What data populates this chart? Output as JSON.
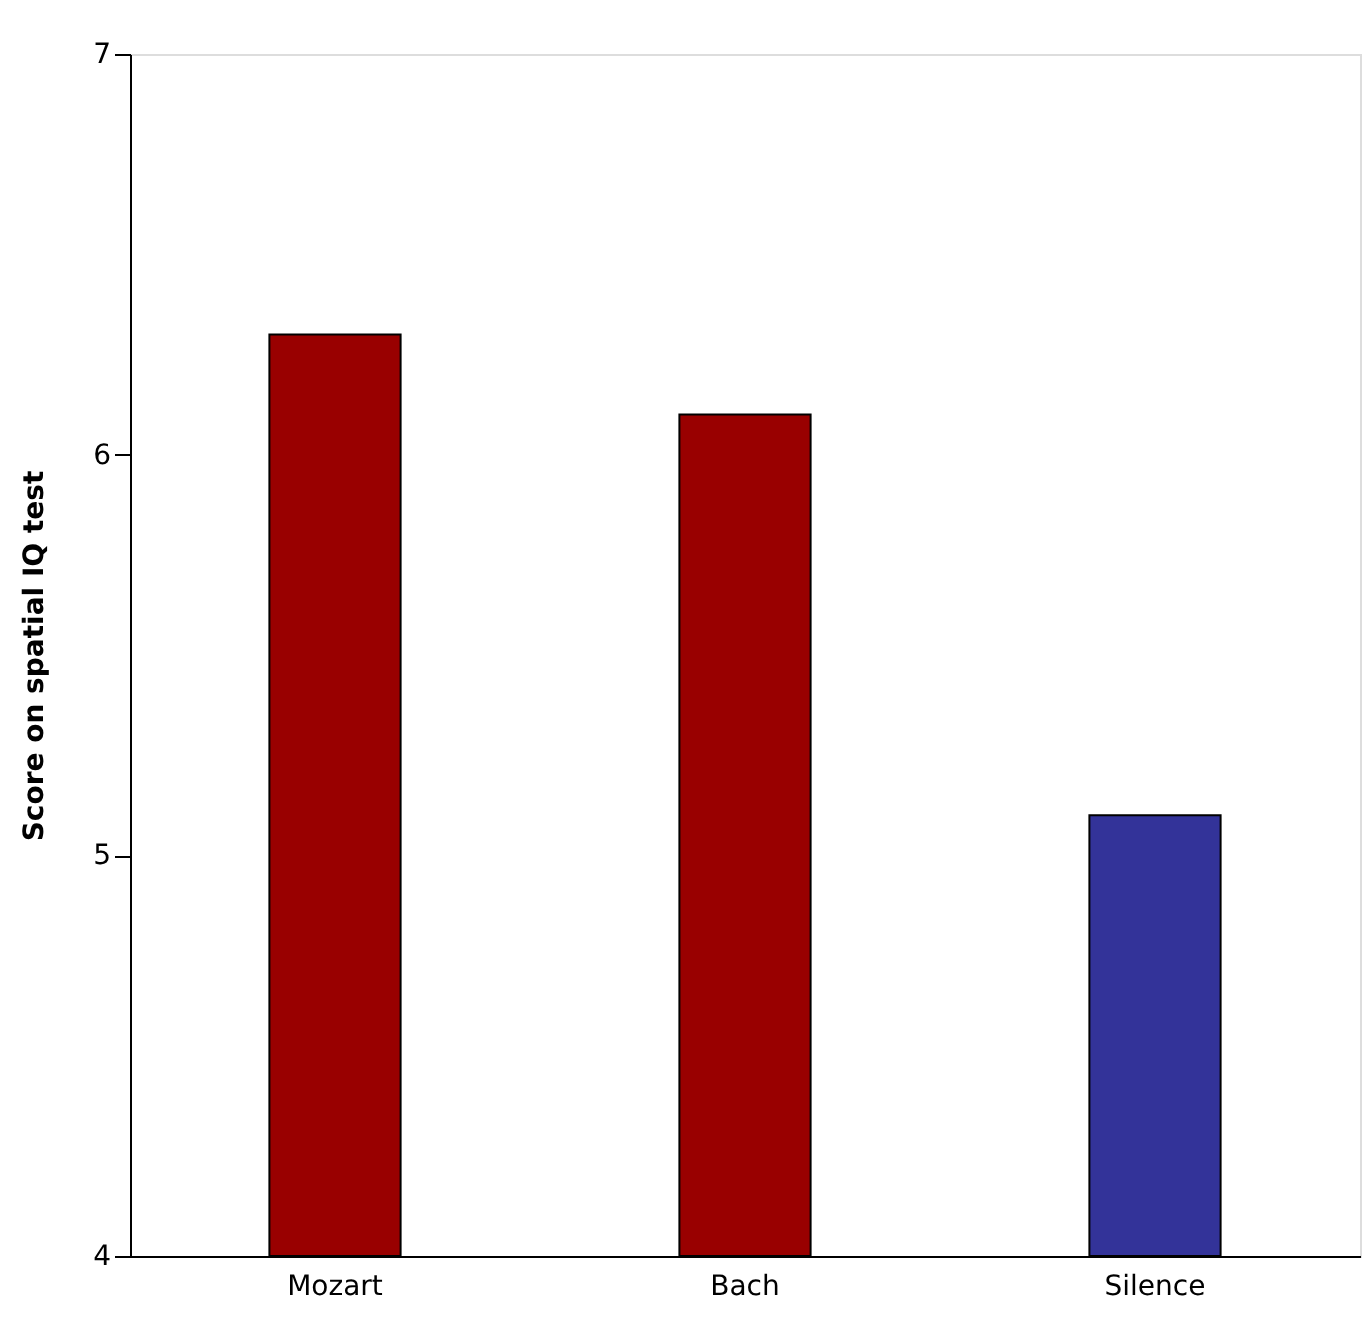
{
  "chart_data": {
    "type": "bar",
    "ylabel": "Score on spatial IQ test",
    "categories": [
      "Mozart",
      "Bach",
      "Silence"
    ],
    "values": [
      6.3,
      6.1,
      5.1
    ],
    "colors": [
      "#990000",
      "#990000",
      "#333399"
    ],
    "ylim": [
      4,
      7
    ],
    "yticks": [
      4,
      5,
      6,
      7
    ],
    "grid": false
  }
}
